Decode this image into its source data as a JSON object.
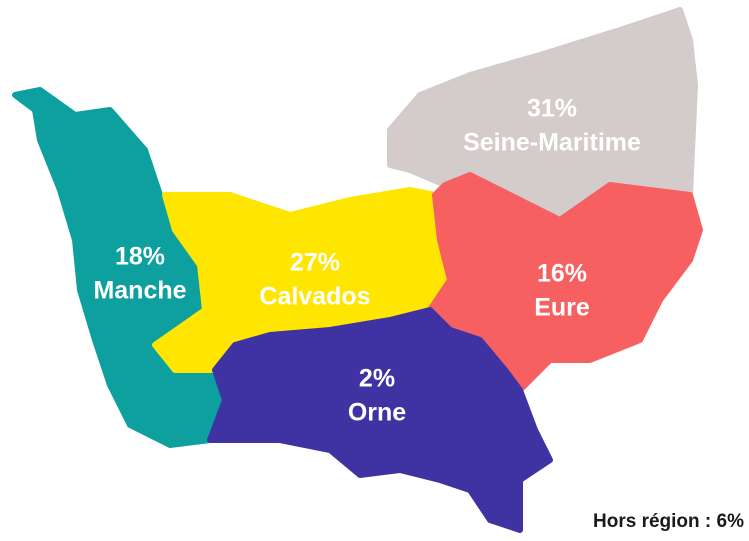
{
  "regions": [
    {
      "name": "Manche",
      "value": 18,
      "value_label": "18%",
      "color": "#0e9f9f"
    },
    {
      "name": "Calvados",
      "value": 27,
      "value_label": "27%",
      "color": "#ffe600"
    },
    {
      "name": "Seine-Maritime",
      "value": 31,
      "value_label": "31%",
      "color": "#d4cbcb"
    },
    {
      "name": "Eure",
      "value": 16,
      "value_label": "16%",
      "color": "#f76060"
    },
    {
      "name": "Orne",
      "value": 2,
      "value_label": "2%",
      "color": "#3f33a3"
    }
  ],
  "note": "Hors région : 6%"
}
